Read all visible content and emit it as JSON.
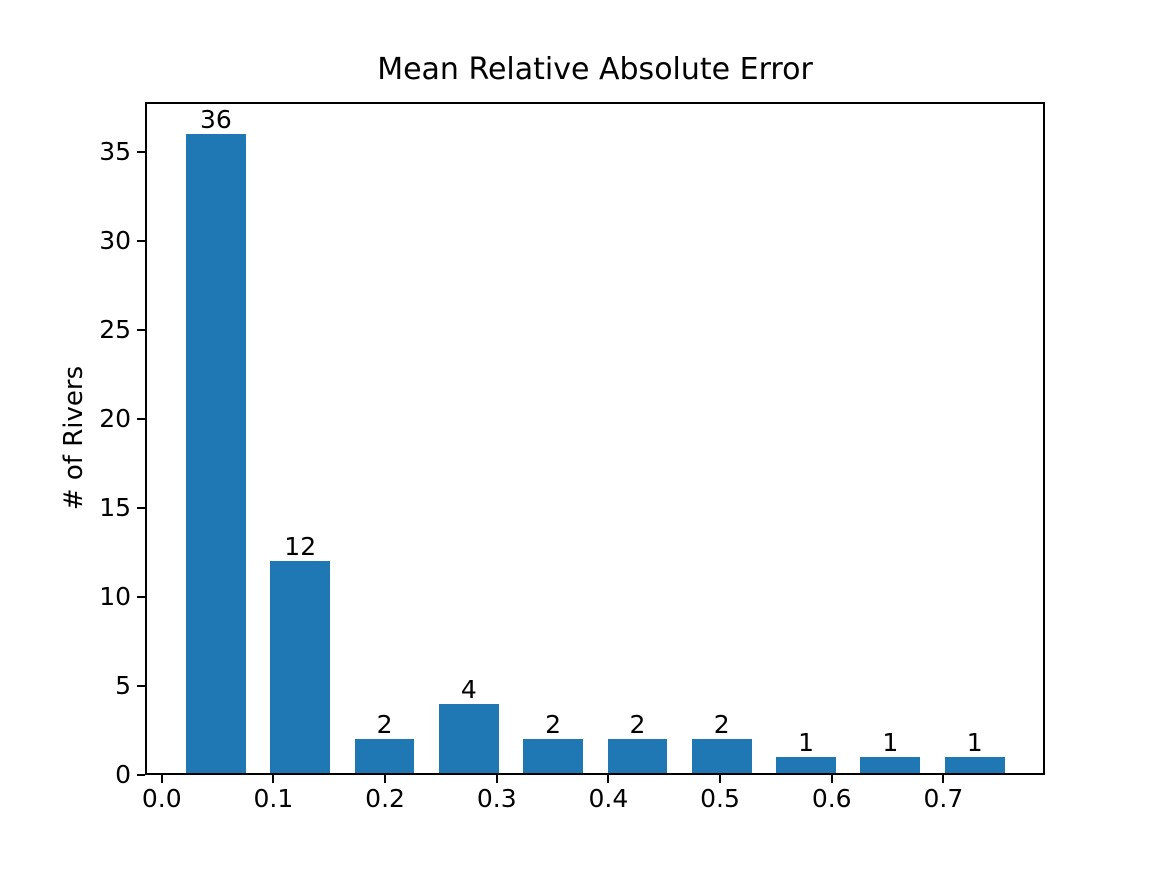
{
  "chart_data": {
    "type": "bar",
    "title": "Mean Relative Absolute Error",
    "xlabel": "",
    "ylabel": "# of Rivers",
    "x": [
      0.0485,
      0.124,
      0.1995,
      0.275,
      0.3505,
      0.426,
      0.5015,
      0.577,
      0.6525,
      0.728
    ],
    "values": [
      36,
      12,
      2,
      4,
      2,
      2,
      2,
      1,
      1,
      1
    ],
    "bar_labels": [
      "36",
      "12",
      "2",
      "4",
      "2",
      "2",
      "2",
      "1",
      "1",
      "1"
    ],
    "bar_width": 0.0535,
    "bar_color": "#1f77b4",
    "xlim": [
      -0.015,
      0.791
    ],
    "ylim": [
      0,
      37.8
    ],
    "xticks": [
      0.0,
      0.1,
      0.2,
      0.3,
      0.4,
      0.5,
      0.6,
      0.7
    ],
    "xtick_labels": [
      "0.0",
      "0.1",
      "0.2",
      "0.3",
      "0.4",
      "0.5",
      "0.6",
      "0.7"
    ],
    "yticks": [
      0,
      5,
      10,
      15,
      20,
      25,
      30,
      35
    ],
    "ytick_labels": [
      "0",
      "5",
      "10",
      "15",
      "20",
      "25",
      "30",
      "35"
    ],
    "grid": false,
    "legend": null,
    "text_color": "#000000",
    "background_color": "#ffffff"
  }
}
